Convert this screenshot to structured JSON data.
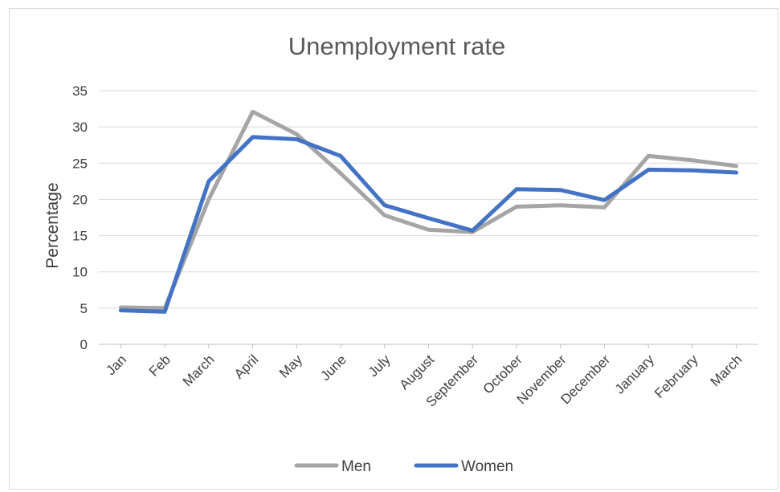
{
  "chart_data": {
    "type": "line",
    "title": "Unemployment rate",
    "xlabel": "",
    "ylabel": "Percentage",
    "ylim": [
      0,
      35
    ],
    "yticks": [
      0,
      5,
      10,
      15,
      20,
      25,
      30,
      35
    ],
    "grid": true,
    "legend_position": "bottom",
    "categories": [
      "Jan",
      "Feb",
      "March",
      "April",
      "May",
      "June",
      "July",
      "August",
      "September",
      "October",
      "November",
      "December",
      "January",
      "February",
      "March"
    ],
    "series": [
      {
        "name": "Men",
        "color": "#a5a5a5",
        "values": [
          5.1,
          5.0,
          20.0,
          32.1,
          29.0,
          23.6,
          17.8,
          15.8,
          15.5,
          19.0,
          19.2,
          18.9,
          26.0,
          25.4,
          24.6
        ]
      },
      {
        "name": "Women",
        "color": "#4472c4",
        "values": [
          4.7,
          4.5,
          22.5,
          28.6,
          28.3,
          26.0,
          19.2,
          17.4,
          15.7,
          21.4,
          21.3,
          19.9,
          24.1,
          24.0,
          23.7
        ]
      }
    ]
  }
}
